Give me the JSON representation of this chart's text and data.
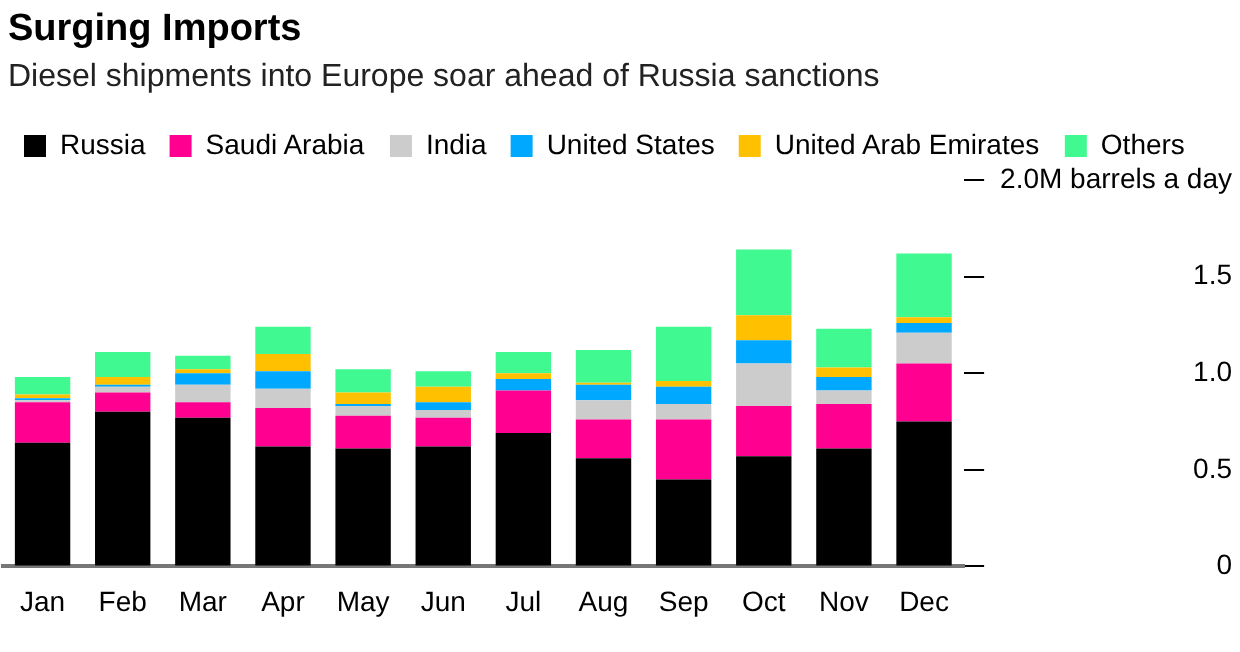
{
  "chart_data": {
    "type": "bar",
    "title": "Surging Imports",
    "subtitle": "Diesel shipments into Europe soar ahead of Russia sanctions",
    "categories": [
      "Jan",
      "Feb",
      "Mar",
      "Apr",
      "May",
      "Jun",
      "Jul",
      "Aug",
      "Sep",
      "Oct",
      "Nov",
      "Dec"
    ],
    "stacked": true,
    "legend": "top",
    "grid": false,
    "ylim": [
      0,
      2.0
    ],
    "yticks": [
      0,
      0.5,
      {
        "value": 1,
        "label": "1.0"
      },
      1.5,
      {
        "value": 2,
        "label": "2.0M barrels a day"
      }
    ],
    "series": [
      {
        "name": "Russia",
        "color": "#000000",
        "values": [
          0.64,
          0.8,
          0.77,
          0.62,
          0.61,
          0.62,
          0.69,
          0.56,
          0.45,
          0.57,
          0.61,
          0.75
        ]
      },
      {
        "name": "Saudi Arabia",
        "color": "#ff0090",
        "values": [
          0.21,
          0.1,
          0.08,
          0.2,
          0.17,
          0.15,
          0.22,
          0.2,
          0.31,
          0.26,
          0.23,
          0.3
        ]
      },
      {
        "name": "India",
        "color": "#cccccc",
        "values": [
          0.01,
          0.03,
          0.09,
          0.1,
          0.05,
          0.04,
          null,
          0.1,
          0.08,
          0.22,
          0.07,
          0.16
        ]
      },
      {
        "name": "United States",
        "color": "#00a8ff",
        "values": [
          0.01,
          0.01,
          0.06,
          0.09,
          0.01,
          0.04,
          0.06,
          0.08,
          0.09,
          0.12,
          0.07,
          0.05
        ]
      },
      {
        "name": "United Arab Emirates",
        "color": "#ffc000",
        "values": [
          0.02,
          0.04,
          0.02,
          0.09,
          0.06,
          0.08,
          0.03,
          0.01,
          0.03,
          0.13,
          0.05,
          0.03
        ]
      },
      {
        "name": "Others",
        "color": "#40f990",
        "values": [
          0.09,
          0.13,
          0.07,
          0.14,
          0.12,
          0.08,
          0.11,
          0.17,
          0.28,
          0.34,
          0.2,
          0.33
        ]
      }
    ]
  }
}
